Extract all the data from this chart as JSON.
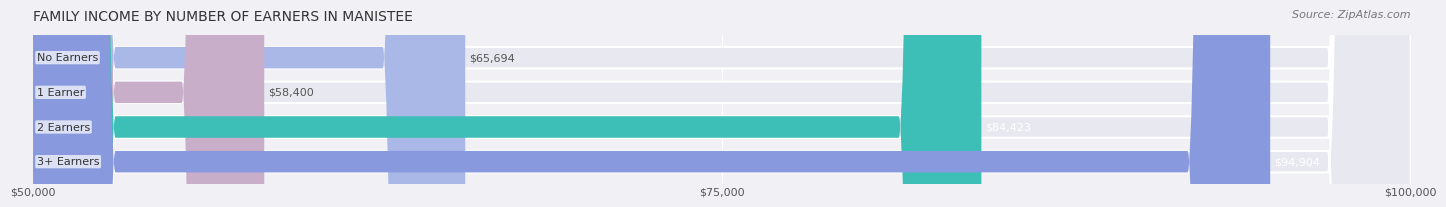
{
  "title": "FAMILY INCOME BY NUMBER OF EARNERS IN MANISTEE",
  "source": "Source: ZipAtlas.com",
  "categories": [
    "No Earners",
    "1 Earner",
    "2 Earners",
    "3+ Earners"
  ],
  "values": [
    65694,
    58400,
    84423,
    94904
  ],
  "bar_colors": [
    "#aab8e8",
    "#c9aec9",
    "#3dbfb8",
    "#8899dd"
  ],
  "bar_labels": [
    "$65,694",
    "$58,400",
    "$84,423",
    "$94,904"
  ],
  "label_colors": [
    "#555555",
    "#555555",
    "#ffffff",
    "#ffffff"
  ],
  "xmin": 50000,
  "xmax": 100000,
  "xticks": [
    50000,
    75000,
    100000
  ],
  "xtick_labels": [
    "$50,000",
    "$75,000",
    "$100,000"
  ],
  "background_color": "#f0f0f5",
  "bar_bg_color": "#e8e8f0",
  "bar_height": 0.62,
  "title_fontsize": 10,
  "source_fontsize": 8,
  "label_fontsize": 8,
  "tick_fontsize": 8,
  "category_fontsize": 8
}
